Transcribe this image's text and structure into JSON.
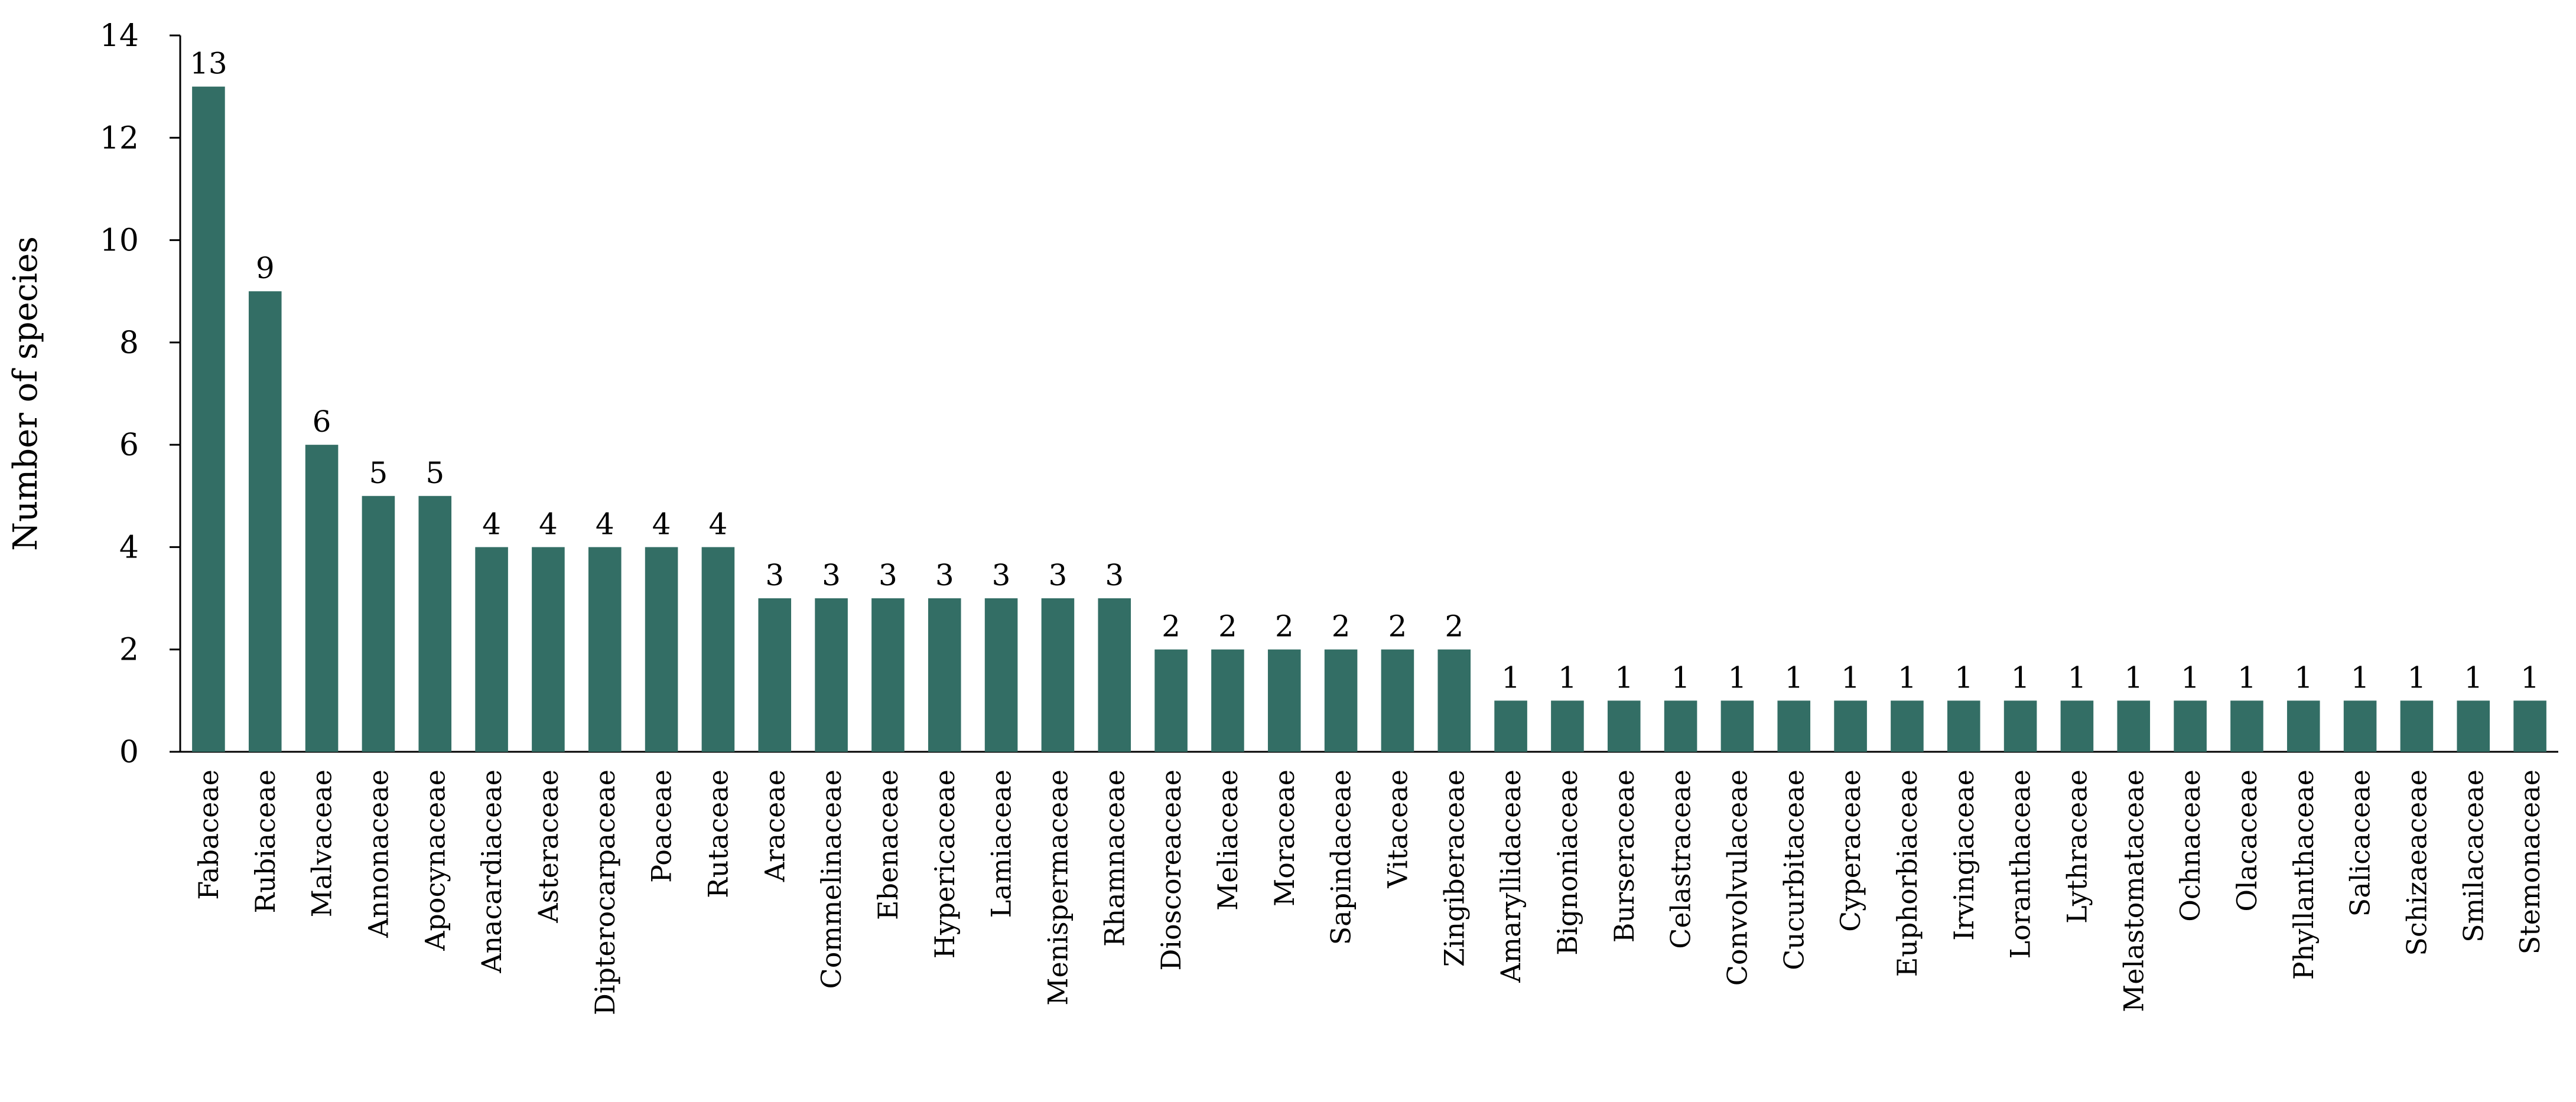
{
  "chart_data": {
    "type": "bar",
    "title": "",
    "xlabel": "",
    "ylabel": "Number of species",
    "ylim": [
      0,
      14
    ],
    "yticks": [
      0,
      2,
      4,
      6,
      8,
      10,
      12,
      14
    ],
    "grid": false,
    "legend": "none",
    "bar_color": "#336e65",
    "categories": [
      "Fabaceae",
      "Rubiaceae",
      "Malvaceae",
      "Annonaceae",
      "Apocynaceae",
      "Anacardiaceae",
      "Asteraceae",
      "Dipterocarpaceae",
      "Poaceae",
      "Rutaceae",
      "Araceae",
      "Commelinaceae",
      "Ebenaceae",
      "Hypericaceae",
      "Lamiaceae",
      "Menispermaceae",
      "Rhamnaceae",
      "Dioscoreaceae",
      "Meliaceae",
      "Moraceae",
      "Sapindaceae",
      "Vitaceae",
      "Zingiberaceae",
      "Amaryllidaceae",
      "Bignoniaceae",
      "Burseraceae",
      "Celastraceae",
      "Convolvulaceae",
      "Cucurbitaceae",
      "Cyperaceae",
      "Euphorbiaceae",
      "Irvingiaceae",
      "Loranthaceae",
      "Lythraceae",
      "Melastomataceae",
      "Ochnaceae",
      "Olacaceae",
      "Phyllanthaceae",
      "Salicaceae",
      "Schizaeaceae",
      "Smilacaceae",
      "Stemonaceae"
    ],
    "values": [
      13,
      9,
      6,
      5,
      5,
      4,
      4,
      4,
      4,
      4,
      3,
      3,
      3,
      3,
      3,
      3,
      3,
      2,
      2,
      2,
      2,
      2,
      2,
      1,
      1,
      1,
      1,
      1,
      1,
      1,
      1,
      1,
      1,
      1,
      1,
      1,
      1,
      1,
      1,
      1,
      1,
      1
    ]
  }
}
